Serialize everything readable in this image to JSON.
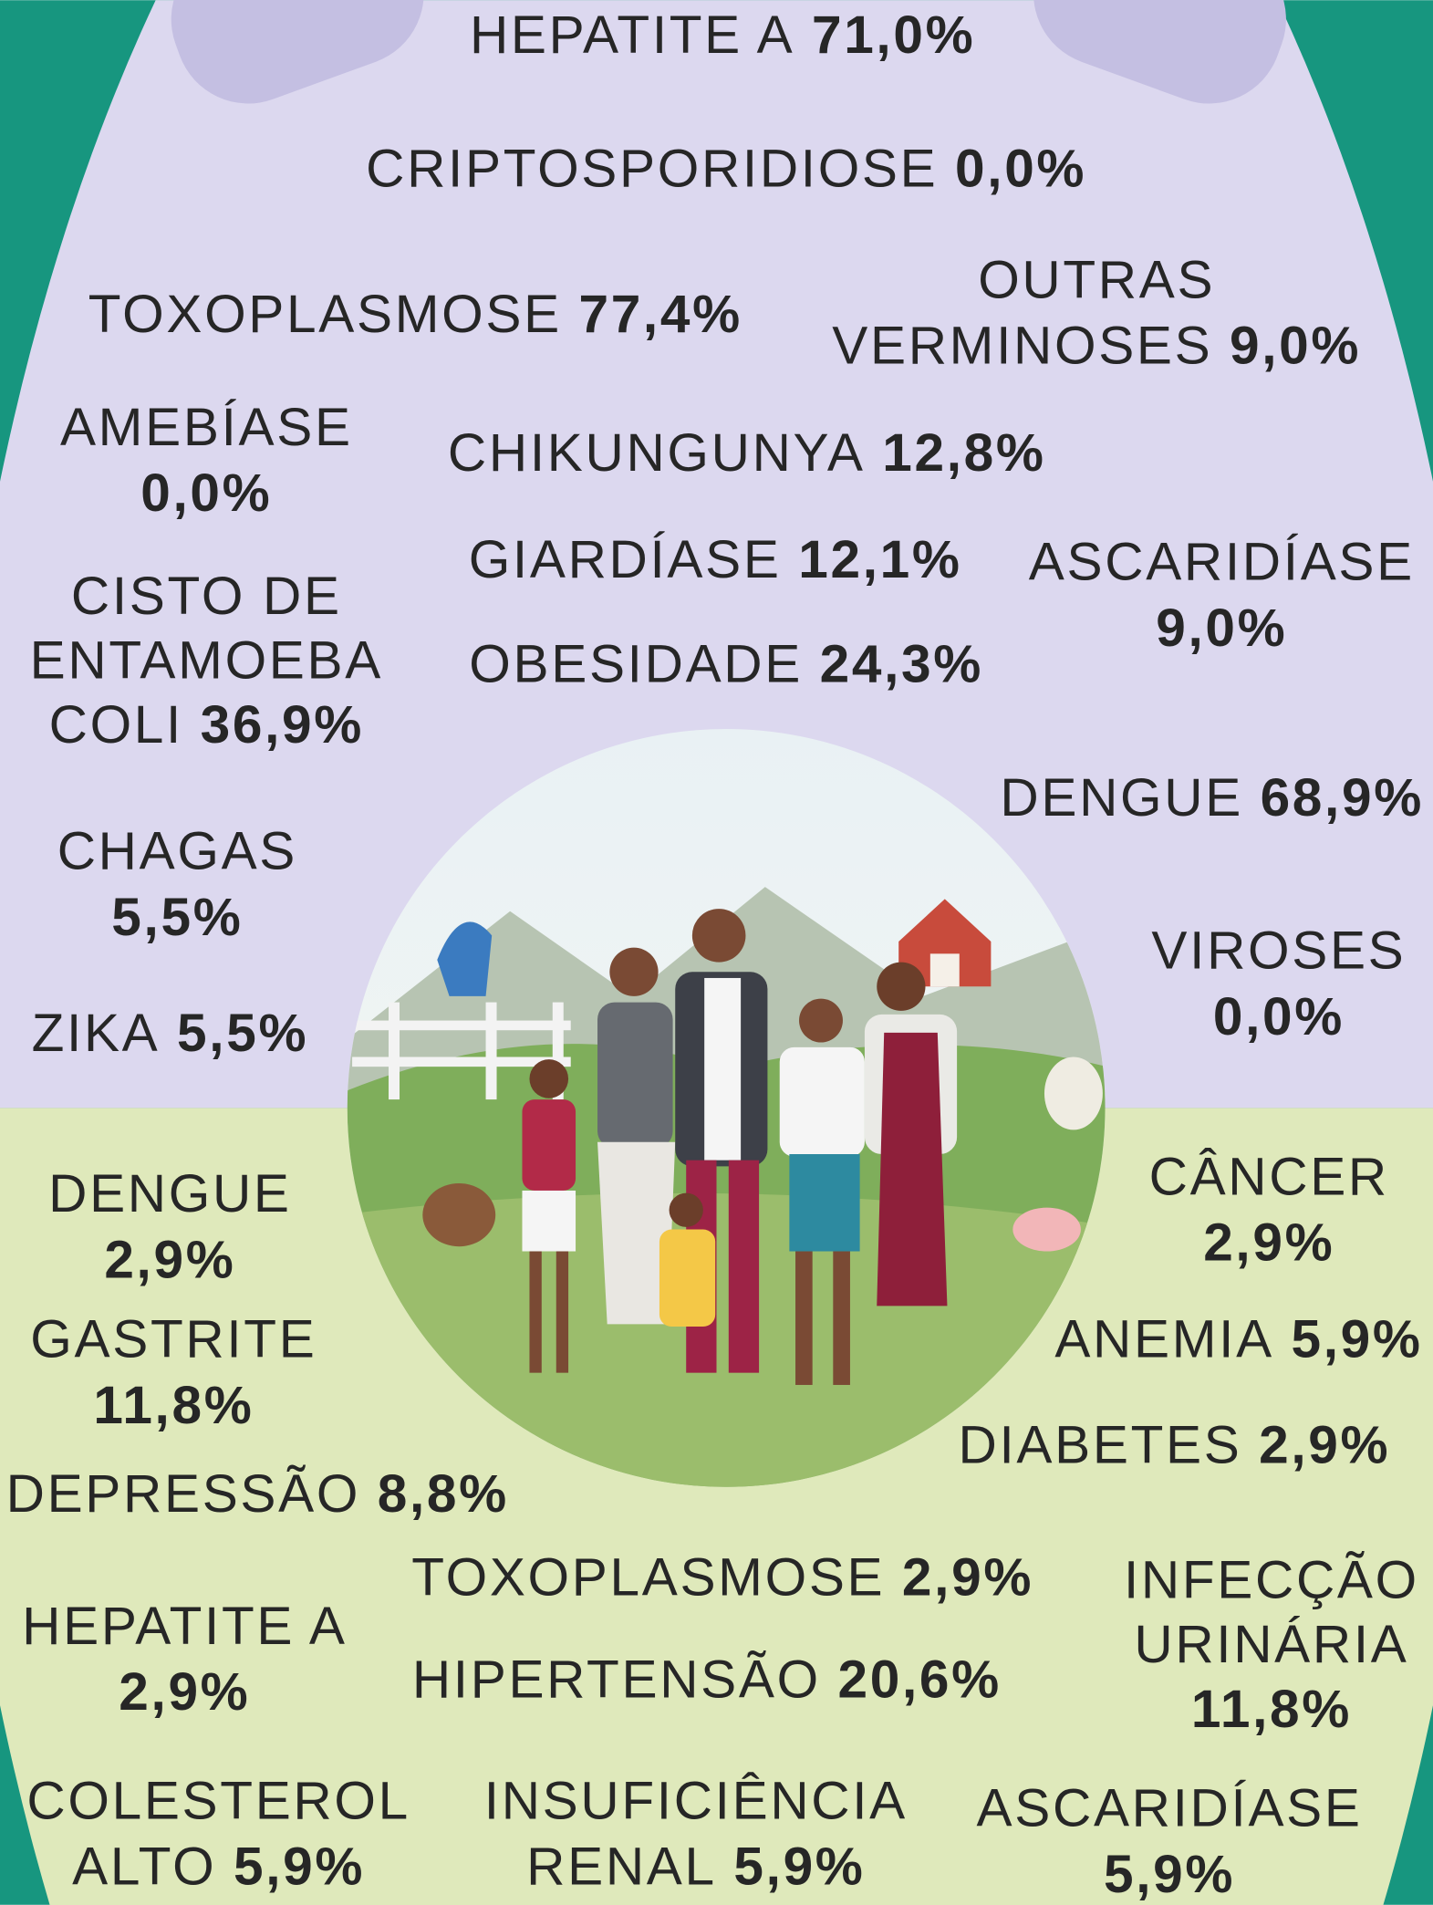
{
  "top_section": {
    "items": [
      {
        "name_lines": [
          "HEPATITE A"
        ],
        "value": "71,0%"
      },
      {
        "name_lines": [
          "CRIPTOSPORIDIOSE"
        ],
        "value": "0,0%"
      },
      {
        "name_lines": [
          "TOXOPLASMOSE"
        ],
        "value": "77,4%"
      },
      {
        "name_lines": [
          "OUTRAS",
          "VERMINOSES"
        ],
        "value": "9,0%"
      },
      {
        "name_lines": [
          "AMEBÍASE"
        ],
        "value": "0,0%"
      },
      {
        "name_lines": [
          "CHIKUNGUNYA"
        ],
        "value": "12,8%"
      },
      {
        "name_lines": [
          "GIARDÍASE"
        ],
        "value": "12,1%"
      },
      {
        "name_lines": [
          "ASCARIDÍASE"
        ],
        "value": "9,0%"
      },
      {
        "name_lines": [
          "CISTO DE",
          "ENTAMOEBA",
          "COLI"
        ],
        "value": "36,9%"
      },
      {
        "name_lines": [
          "OBESIDADE"
        ],
        "value": "24,3%"
      },
      {
        "name_lines": [
          "DENGUE"
        ],
        "value": "68,9%"
      },
      {
        "name_lines": [
          "CHAGAS"
        ],
        "value": "5,5%"
      },
      {
        "name_lines": [
          "VIROSES"
        ],
        "value": "0,0%"
      },
      {
        "name_lines": [
          "ZIKA"
        ],
        "value": "5,5%"
      }
    ]
  },
  "bottom_section": {
    "items": [
      {
        "name_lines": [
          "DENGUE"
        ],
        "value": "2,9%"
      },
      {
        "name_lines": [
          "CÂNCER"
        ],
        "value": "2,9%"
      },
      {
        "name_lines": [
          "GASTRITE"
        ],
        "value": "11,8%"
      },
      {
        "name_lines": [
          "ANEMIA"
        ],
        "value": "5,9%"
      },
      {
        "name_lines": [
          "DIABETES"
        ],
        "value": "2,9%"
      },
      {
        "name_lines": [
          "DEPRESSÃO"
        ],
        "value": "8,8%"
      },
      {
        "name_lines": [
          "TOXOPLASMOSE"
        ],
        "value": "2,9%"
      },
      {
        "name_lines": [
          "INFECÇÃO",
          "URINÁRIA"
        ],
        "value": "11,8%"
      },
      {
        "name_lines": [
          "HEPATITE A"
        ],
        "value": "2,9%"
      },
      {
        "name_lines": [
          "HIPERTENSÃO"
        ],
        "value": "20,6%"
      },
      {
        "name_lines": [
          "COLESTEROL",
          "ALTO"
        ],
        "value": "5,9%"
      },
      {
        "name_lines": [
          "INSUFICIÊNCIA",
          "RENAL"
        ],
        "value": "5,9%"
      },
      {
        "name_lines": [
          "ASCARIDÍASE"
        ],
        "value": "5,9%"
      }
    ]
  }
}
